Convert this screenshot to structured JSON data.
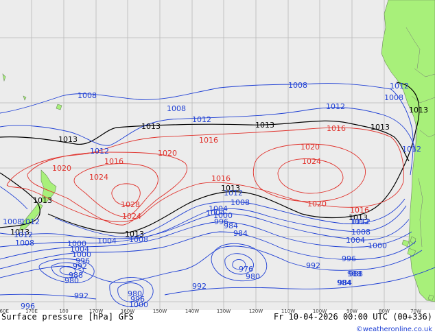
{
  "map": {
    "title": "Surface pressure [hPa] GFS",
    "valid_time": "Fr 10-04-2026 00:00 UTC (00+336)",
    "copyright": "©weatheronline.co.uk",
    "longitude_labels": [
      "160E",
      "170E",
      "180",
      "170W",
      "160W",
      "150W",
      "140W",
      "130W",
      "120W",
      "110W",
      "100W",
      "90W",
      "80W",
      "70W"
    ],
    "isobar_labels": {
      "black": [
        "1013",
        "1013",
        "1013",
        "1013",
        "1013",
        "1013",
        "1013",
        "1013",
        "1013",
        "1013"
      ],
      "blue": [
        "1008",
        "1008",
        "1008",
        "1012",
        "1012",
        "1012",
        "1012",
        "1008",
        "1012",
        "1012",
        "1012",
        "1008",
        "1008",
        "1004",
        "1000",
        "1004",
        "1000",
        "996",
        "1000",
        "1004",
        "1008",
        "1012",
        "1008",
        "1004",
        "1000",
        "996",
        "992",
        "988",
        "984",
        "980",
        "976",
        "980",
        "984",
        "988",
        "992",
        "992",
        "984",
        "980",
        "996",
        "1000",
        "1004",
        "1008",
        "1012",
        "1012",
        "996",
        "992",
        "988",
        "984",
        "996"
      ],
      "red": [
        "1016",
        "1016",
        "1016",
        "1016",
        "1016",
        "1020",
        "1020",
        "1020",
        "1020",
        "1024",
        "1024",
        "1024",
        "1028"
      ]
    }
  }
}
